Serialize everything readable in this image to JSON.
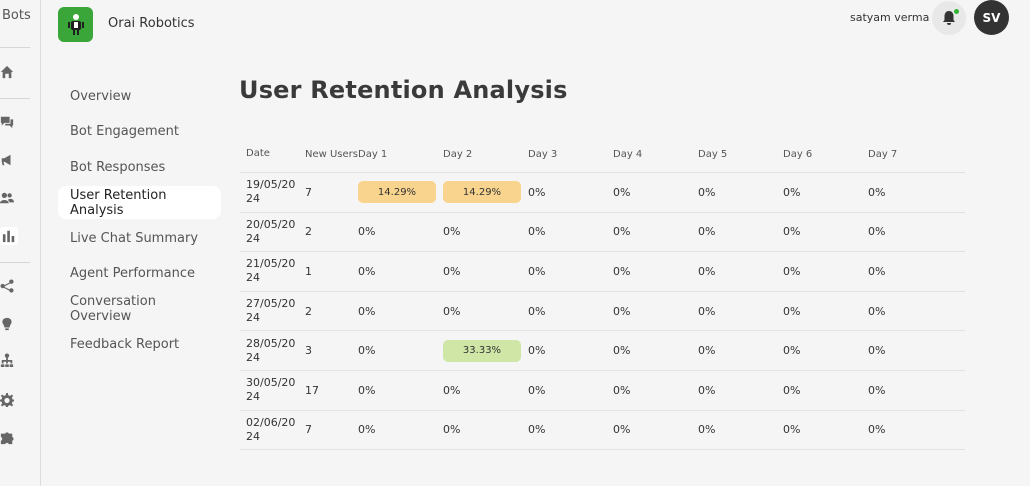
{
  "rail": {
    "title": "Bots",
    "icons": [
      {
        "name": "home-icon",
        "active": false
      },
      {
        "name": "chat-icon",
        "active": false
      },
      {
        "name": "megaphone-icon",
        "active": false
      },
      {
        "name": "users-icon",
        "active": false
      },
      {
        "name": "bar-chart-icon",
        "active": true
      },
      {
        "name": "share-nodes-icon",
        "active": false
      },
      {
        "name": "lightbulb-icon",
        "active": false
      },
      {
        "name": "hierarchy-icon",
        "active": false
      },
      {
        "name": "gear-icon",
        "active": false
      },
      {
        "name": "puzzle-icon",
        "active": false
      }
    ]
  },
  "header": {
    "brand_name": "Orai Robotics",
    "user_name": "satyam verma",
    "avatar_initials": "SV",
    "notification_color": "#2fb52f"
  },
  "subnav": {
    "items": [
      {
        "label": "Overview",
        "active": false
      },
      {
        "label": "Bot Engagement",
        "active": false
      },
      {
        "label": "Bot Responses",
        "active": false
      },
      {
        "label": "User Retention Analysis",
        "active": true
      },
      {
        "label": "Live Chat Summary",
        "active": false
      },
      {
        "label": "Agent Performance",
        "active": false
      },
      {
        "label": "Conversation Overview",
        "active": false
      },
      {
        "label": "Feedback Report",
        "active": false
      }
    ]
  },
  "page": {
    "title": "User Retention Analysis"
  },
  "table": {
    "headers": [
      "Date",
      "New Users",
      "Day 1",
      "Day 2",
      "Day 3",
      "Day 4",
      "Day 5",
      "Day 6",
      "Day 7"
    ],
    "highlight_colors": {
      "orange": "#f8d48e",
      "green": "#cfe6a6"
    },
    "rows": [
      {
        "date": "19/05/2024",
        "new_users": "7",
        "days": [
          {
            "v": "14.29%",
            "hl": "orange"
          },
          {
            "v": "14.29%",
            "hl": "orange"
          },
          {
            "v": "0%"
          },
          {
            "v": "0%"
          },
          {
            "v": "0%"
          },
          {
            "v": "0%"
          },
          {
            "v": "0%"
          }
        ]
      },
      {
        "date": "20/05/2024",
        "new_users": "2",
        "days": [
          {
            "v": "0%"
          },
          {
            "v": "0%"
          },
          {
            "v": "0%"
          },
          {
            "v": "0%"
          },
          {
            "v": "0%"
          },
          {
            "v": "0%"
          },
          {
            "v": "0%"
          }
        ]
      },
      {
        "date": "21/05/2024",
        "new_users": "1",
        "days": [
          {
            "v": "0%"
          },
          {
            "v": "0%"
          },
          {
            "v": "0%"
          },
          {
            "v": "0%"
          },
          {
            "v": "0%"
          },
          {
            "v": "0%"
          },
          {
            "v": "0%"
          }
        ]
      },
      {
        "date": "27/05/2024",
        "new_users": "2",
        "days": [
          {
            "v": "0%"
          },
          {
            "v": "0%"
          },
          {
            "v": "0%"
          },
          {
            "v": "0%"
          },
          {
            "v": "0%"
          },
          {
            "v": "0%"
          },
          {
            "v": "0%"
          }
        ]
      },
      {
        "date": "28/05/2024",
        "new_users": "3",
        "days": [
          {
            "v": "0%"
          },
          {
            "v": "33.33%",
            "hl": "green"
          },
          {
            "v": "0%"
          },
          {
            "v": "0%"
          },
          {
            "v": "0%"
          },
          {
            "v": "0%"
          },
          {
            "v": "0%"
          }
        ]
      },
      {
        "date": "30/05/2024",
        "new_users": "17",
        "days": [
          {
            "v": "0%"
          },
          {
            "v": "0%"
          },
          {
            "v": "0%"
          },
          {
            "v": "0%"
          },
          {
            "v": "0%"
          },
          {
            "v": "0%"
          },
          {
            "v": "0%"
          }
        ]
      },
      {
        "date": "02/06/2024",
        "new_users": "7",
        "days": [
          {
            "v": "0%"
          },
          {
            "v": "0%"
          },
          {
            "v": "0%"
          },
          {
            "v": "0%"
          },
          {
            "v": "0%"
          },
          {
            "v": "0%"
          },
          {
            "v": "0%"
          }
        ]
      }
    ]
  }
}
